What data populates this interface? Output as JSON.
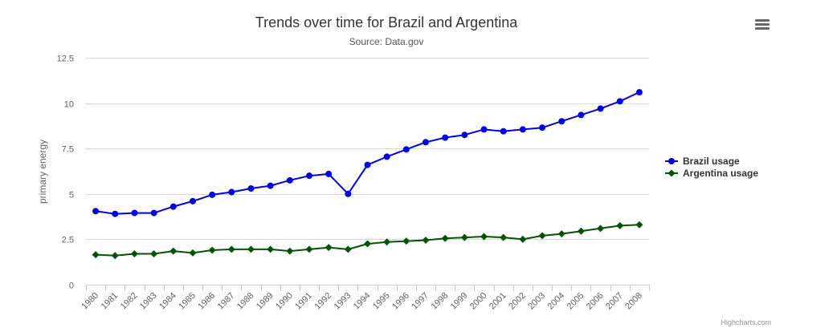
{
  "chart_data": {
    "type": "line",
    "title": "Trends over time for Brazil and Argentina",
    "subtitle": "Source: Data.gov",
    "xlabel": "",
    "ylabel": "primary energy",
    "ylim": [
      0,
      12.5
    ],
    "yticks": [
      "0",
      "2.5",
      "5",
      "7.5",
      "10",
      "12.5"
    ],
    "ytick_values": [
      0,
      2.5,
      5,
      7.5,
      10,
      12.5
    ],
    "grid": true,
    "legend_position": "right",
    "categories": [
      "1980",
      "1981",
      "1982",
      "1983",
      "1984",
      "1985",
      "1986",
      "1987",
      "1988",
      "1989",
      "1990",
      "1991",
      "1992",
      "1993",
      "1994",
      "1995",
      "1996",
      "1997",
      "1998",
      "1999",
      "2000",
      "2001",
      "2002",
      "2003",
      "2004",
      "2005",
      "2006",
      "2007",
      "2008"
    ],
    "series": [
      {
        "name": "Brazil usage",
        "color": "#0000ee",
        "marker": "circle",
        "values": [
          4.05,
          3.9,
          3.95,
          3.95,
          4.3,
          4.6,
          4.95,
          5.1,
          5.3,
          5.45,
          5.75,
          6.0,
          6.1,
          5.0,
          6.6,
          7.05,
          7.45,
          7.85,
          8.1,
          8.25,
          8.55,
          8.45,
          8.55,
          8.65,
          9.0,
          9.35,
          9.7,
          10.1,
          10.6
        ]
      },
      {
        "name": "Argentina usage",
        "color": "#005500",
        "marker": "diamond",
        "values": [
          1.65,
          1.6,
          1.7,
          1.7,
          1.85,
          1.75,
          1.9,
          1.95,
          1.95,
          1.95,
          1.85,
          1.95,
          2.05,
          1.95,
          2.25,
          2.35,
          2.4,
          2.45,
          2.55,
          2.6,
          2.65,
          2.6,
          2.5,
          2.7,
          2.8,
          2.95,
          3.1,
          3.25,
          3.3
        ]
      }
    ]
  },
  "ui": {
    "menu_icon": "hamburger-menu-icon",
    "credits": "Highcharts.com"
  }
}
